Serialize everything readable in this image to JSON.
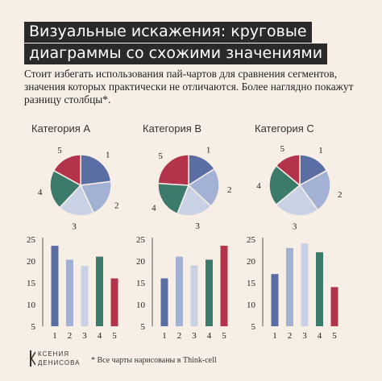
{
  "title_line1": "Визуальные искажения: круговые",
  "title_line2": "диаграммы со схожими значениями",
  "intro": "Стоит избегать использования пай-чартов для сравнения сегментов, значения которых практически не отличаются. Более наглядно покажут разницу столбцы*.",
  "brand_line1": "КСЕНИЯ",
  "brand_line2": "ДЕНИСОВА",
  "footnote": "* Все чарты нарисованы в Think-cell",
  "colors": [
    "#5b6ea3",
    "#a3b2d4",
    "#c9d1e4",
    "#3c7a6b",
    "#b3334a"
  ],
  "chart_data": [
    {
      "type": "pie",
      "title": "Категория A",
      "categories": [
        "1",
        "2",
        "3",
        "4",
        "5"
      ],
      "values": [
        23,
        20,
        19,
        21,
        17
      ]
    },
    {
      "type": "pie",
      "title": "Категория B",
      "categories": [
        "1",
        "2",
        "3",
        "4",
        "5"
      ],
      "values": [
        16,
        21,
        19,
        20,
        24
      ]
    },
    {
      "type": "pie",
      "title": "Категория C",
      "categories": [
        "1",
        "2",
        "3",
        "4",
        "5"
      ],
      "values": [
        17,
        23,
        24,
        22,
        14
      ]
    },
    {
      "type": "bar",
      "categories": [
        "1",
        "2",
        "3",
        "4",
        "5"
      ],
      "values": [
        23.5,
        20.3,
        18.9,
        21,
        16
      ],
      "ylim": [
        5,
        25
      ],
      "yticks": [
        5,
        10,
        15,
        20,
        25
      ]
    },
    {
      "type": "bar",
      "categories": [
        "1",
        "2",
        "3",
        "4",
        "5"
      ],
      "values": [
        16,
        21,
        19,
        20.3,
        23.5
      ],
      "ylim": [
        5,
        25
      ],
      "yticks": [
        5,
        10,
        15,
        20,
        25
      ]
    },
    {
      "type": "bar",
      "categories": [
        "1",
        "2",
        "3",
        "4",
        "5"
      ],
      "values": [
        17,
        23,
        24,
        22,
        14
      ],
      "ylim": [
        5,
        25
      ],
      "yticks": [
        5,
        10,
        15,
        20,
        25
      ]
    }
  ]
}
